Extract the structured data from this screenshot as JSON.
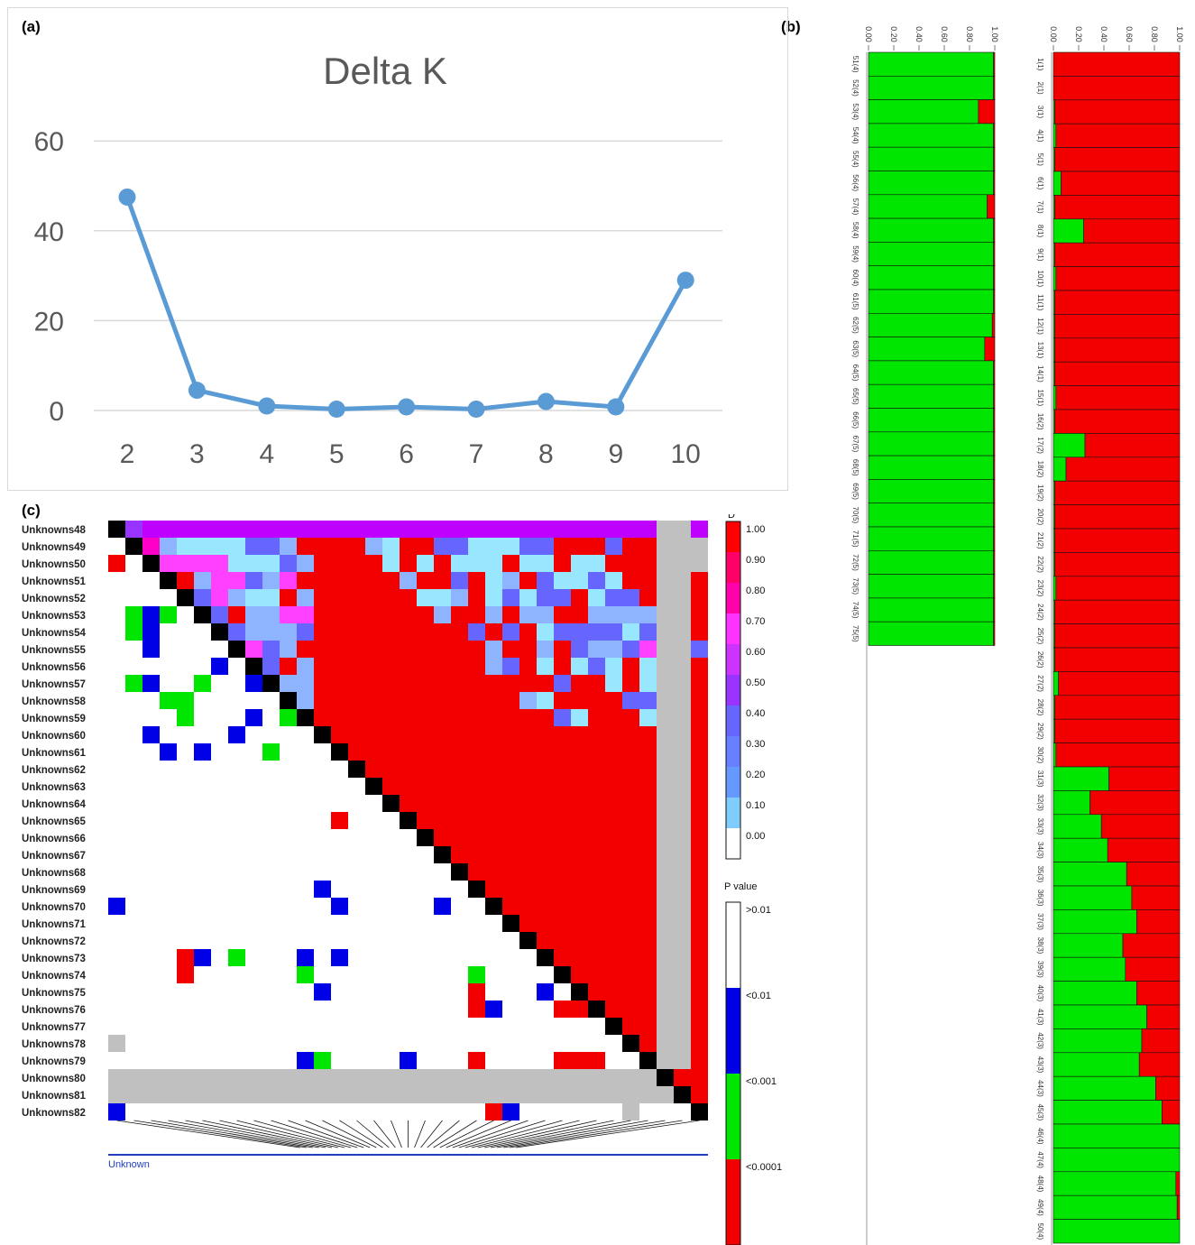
{
  "labels": {
    "a": "(a)",
    "b": "(b)",
    "c": "(c)"
  },
  "colors": {
    "line": "#5b9bd5",
    "green": "#00e600",
    "red": "#f20000",
    "black": "#000000",
    "gray": "#c0c0c0",
    "blue": "#0000e6"
  },
  "chart_data": [
    {
      "type": "line",
      "title": "Delta K",
      "x": [
        2,
        3,
        4,
        5,
        6,
        7,
        8,
        9,
        10
      ],
      "y": [
        47.5,
        4.5,
        1,
        0.3,
        0.8,
        0.3,
        2,
        0.8,
        29
      ],
      "ylim": [
        0,
        60
      ],
      "yticks": [
        0,
        20,
        40,
        60
      ],
      "grid": true
    },
    {
      "type": "bar",
      "orientation": "horizontal",
      "stacked": true,
      "xticks": [
        "0.00",
        "0.20",
        "0.40",
        "0.60",
        "0.80",
        "1.00"
      ],
      "left_column": {
        "categories": [
          "51(4)",
          "52(4)",
          "53(4)",
          "54(4)",
          "55(4)",
          "56(4)",
          "57(4)",
          "58(4)",
          "59(4)",
          "60(4)",
          "61(5)",
          "62(5)",
          "63(5)",
          "64(5)",
          "65(5)",
          "66(5)",
          "67(5)",
          "68(5)",
          "69(5)",
          "70(5)",
          "71(5)",
          "72(5)",
          "73(5)",
          "74(5)",
          "75(5)"
        ],
        "green": [
          0.99,
          0.99,
          0.87,
          0.99,
          0.99,
          0.99,
          0.94,
          0.99,
          0.99,
          0.99,
          0.99,
          0.98,
          0.92,
          0.99,
          0.99,
          0.99,
          0.99,
          0.99,
          0.99,
          0.99,
          0.99,
          0.99,
          0.99,
          0.99,
          0.99
        ]
      },
      "right_column": {
        "categories": [
          "1(1)",
          "2(1)",
          "3(1)",
          "4(1)",
          "5(1)",
          "6(1)",
          "7(1)",
          "8(1)",
          "9(1)",
          "10(1)",
          "11(1)",
          "12(1)",
          "13(1)",
          "14(1)",
          "15(1)",
          "16(2)",
          "17(2)",
          "18(2)",
          "19(2)",
          "20(2)",
          "21(2)",
          "22(2)",
          "23(2)",
          "24(2)",
          "25(2)",
          "26(2)",
          "27(2)",
          "28(2)",
          "29(2)",
          "30(2)",
          "31(3)",
          "32(3)",
          "33(3)",
          "34(3)",
          "35(3)",
          "36(3)",
          "37(3)",
          "38(3)",
          "39(3)",
          "40(3)",
          "41(3)",
          "42(3)",
          "43(3)",
          "44(3)",
          "45(3)",
          "46(4)",
          "47(4)",
          "48(4)",
          "49(4)",
          "50(4)"
        ],
        "green": [
          0,
          0,
          0.01,
          0.02,
          0.01,
          0.06,
          0.01,
          0.24,
          0.01,
          0.02,
          0.01,
          0.01,
          0.01,
          0.01,
          0.02,
          0.01,
          0.25,
          0.1,
          0.01,
          0.01,
          0.01,
          0.01,
          0.02,
          0.01,
          0.01,
          0.01,
          0.04,
          0.01,
          0.01,
          0.02,
          0.44,
          0.29,
          0.38,
          0.43,
          0.58,
          0.62,
          0.66,
          0.55,
          0.57,
          0.66,
          0.74,
          0.7,
          0.68,
          0.81,
          0.86,
          1,
          1,
          0.97,
          0.98,
          1
        ]
      }
    },
    {
      "type": "heatmap",
      "rows": [
        "Unknowns48",
        "Unknowns49",
        "Unknowns50",
        "Unknowns51",
        "Unknowns52",
        "Unknowns53",
        "Unknowns54",
        "Unknowns55",
        "Unknowns56",
        "Unknowns57",
        "Unknowns58",
        "Unknowns59",
        "Unknowns60",
        "Unknowns61",
        "Unknowns62",
        "Unknowns63",
        "Unknowns64",
        "Unknowns65",
        "Unknowns66",
        "Unknowns67",
        "Unknowns68",
        "Unknowns69",
        "Unknowns70",
        "Unknowns71",
        "Unknowns72",
        "Unknowns73",
        "Unknowns74",
        "Unknowns75",
        "Unknowns76",
        "Unknowns77",
        "Unknowns78",
        "Unknowns79",
        "Unknowns80",
        "Unknowns81",
        "Unknowns82"
      ],
      "legend_dprime_title": "D'",
      "legend_dprime_ticks": [
        "1.00",
        "0.90",
        "0.80",
        "0.70",
        "0.60",
        "0.50",
        "0.40",
        "0.30",
        "0.20",
        "0.10",
        "0.00"
      ],
      "legend_p_title": "P value",
      "legend_p_ticks": [
        ">0.01",
        "<0.01",
        "<0.001",
        "<0.0001"
      ],
      "axis_label": "Unknown",
      "upper_triangle_dprime": [
        "MPPPPPPPPPPPPPPPPPPPPPPPPPPPPPPPPP",
        "qaccccbbaRRRRacRRbbcccbbRRRbRRRggb",
        "oooocccbaRRRRcRcRcccRccRccRRRRRgga",
        "RaoobaoRRRRRRaRRbRcaRbccbcRRRRRggb",
        "boaccRaRRRRRRccaRcbcbbRcbbRRRRRgga",
        "bRaaooRRRRRRRaRRaRaaRRaaaaaRRRRggb",
        "baaabRRRRRRRRRbRbRcbbbbcbbbRRRRggc",
        "obaRRRRRRRRRRRaRRaRbaaboaRbRRRRgga",
        "bRaRRRRRRRRRRabRcRcbcRcbbRRRRRRggb",
        "aaRRRRRRRRRRRRRRbRRcRcbbRRRRRRRggc",
        "aRRRRRRRRRRRRacRRRRbbbRRbRRRRRRgga",
        "RRRRRRRRRRRRRRbcRRRcRRRRcRRRRRRggc",
        "RRRRRRRRRRRRRRRRRRRRRRRRRRRRRRRggb",
        "RRRRRRRRRRRRRRRRRRRRRRRRRRRRRRRggc",
        "RRRRRRRRRRRRRRRRRRRRRRRRRRRRRRRggb",
        "RRRRRRRRRRRRRRRRRRRRRRRRRRRRRRRggc",
        "RRRRRRRRRRRRRRRRRRRRRRRRRRRRRRRggb",
        "RRRRRRRRRRRRRRRRRRRRRRRRRRRRRRRggc",
        "RRRRRRRRRRRRRRRRRRRRRRRRRRRRRRRggb",
        "RRRRRRRRRRRRRRRRRRRRRRRRRRRRRRRggc",
        "RRRRRRRRRRRRRRRRRRRRRRRRRRRRRRRggb",
        "RRRRRRRRRRRRRRRRRRRRRRRRRRRRRRRggc",
        "RRRRRRRRRRRRRRRRRRRRRRRRRRRRRRRggb",
        "RRRRRRRRRRRRRRRRRRRRRRRRRRRRRRRggc",
        "RRRRRRRRRRRRRRRRRRRRRRRRRRRRRRRggb",
        "RRRRRRRRRRRRRRRRRRRRRRRRRRRRRRRggc",
        "RRRRRRRRRRRRRRRRRRRRRRRRRRRRRRRggb",
        "RRRRRRRRRRRRRRRRRRRRRRRRRRRRRRRggc",
        "RRRRRRRRRRRRRRRRRRRRRRRRRRRRRRRggb",
        "RRRRRRRRRRRRRRRRRRRRRRRRRRRRRRRggc",
        "RRRRRRRRRRRRRRRRRRRRRRRRRRRRRRRggb",
        "RRRRRRRRRRRRRRRRRRRRRRRRRRRRRRRggc",
        "RRRRRRRRRRRRRRRRRRRRRRRRRRRRRRRggb",
        "RRRRRRRRRRRRRRRRRRRRRRRRRRRRRRRggc"
      ],
      "lower_triangle_pvalue": [
        {
          "row": 2,
          "col": 0,
          "v": "R"
        },
        {
          "row": 5,
          "col": 1,
          "v": "G"
        },
        {
          "row": 5,
          "col": 2,
          "v": "B"
        },
        {
          "row": 5,
          "col": 3,
          "v": "G"
        },
        {
          "row": 6,
          "col": 1,
          "v": "G"
        },
        {
          "row": 6,
          "col": 2,
          "v": "B"
        },
        {
          "row": 7,
          "col": 2,
          "v": "B"
        },
        {
          "row": 8,
          "col": 6,
          "v": "B"
        },
        {
          "row": 9,
          "col": 1,
          "v": "G"
        },
        {
          "row": 9,
          "col": 2,
          "v": "B"
        },
        {
          "row": 9,
          "col": 5,
          "v": "G"
        },
        {
          "row": 9,
          "col": 8,
          "v": "B"
        },
        {
          "row": 10,
          "col": 3,
          "v": "G"
        },
        {
          "row": 10,
          "col": 4,
          "v": "G"
        },
        {
          "row": 11,
          "col": 4,
          "v": "G"
        },
        {
          "row": 11,
          "col": 8,
          "v": "B"
        },
        {
          "row": 11,
          "col": 10,
          "v": "G"
        },
        {
          "row": 12,
          "col": 2,
          "v": "B"
        },
        {
          "row": 12,
          "col": 7,
          "v": "B"
        },
        {
          "row": 13,
          "col": 3,
          "v": "B"
        },
        {
          "row": 13,
          "col": 5,
          "v": "B"
        },
        {
          "row": 13,
          "col": 9,
          "v": "G"
        },
        {
          "row": 17,
          "col": 13,
          "v": "R"
        },
        {
          "row": 21,
          "col": 12,
          "v": "B"
        },
        {
          "row": 22,
          "col": 0,
          "v": "B"
        },
        {
          "row": 22,
          "col": 13,
          "v": "B"
        },
        {
          "row": 22,
          "col": 19,
          "v": "B"
        },
        {
          "row": 25,
          "col": 4,
          "v": "R"
        },
        {
          "row": 25,
          "col": 5,
          "v": "B"
        },
        {
          "row": 25,
          "col": 7,
          "v": "G"
        },
        {
          "row": 25,
          "col": 11,
          "v": "B"
        },
        {
          "row": 25,
          "col": 13,
          "v": "B"
        },
        {
          "row": 26,
          "col": 4,
          "v": "R"
        },
        {
          "row": 26,
          "col": 11,
          "v": "G"
        },
        {
          "row": 26,
          "col": 21,
          "v": "G"
        },
        {
          "row": 27,
          "col": 12,
          "v": "B"
        },
        {
          "row": 27,
          "col": 21,
          "v": "R"
        },
        {
          "row": 27,
          "col": 25,
          "v": "B"
        },
        {
          "row": 28,
          "col": 21,
          "v": "R"
        },
        {
          "row": 28,
          "col": 22,
          "v": "B"
        },
        {
          "row": 28,
          "col": 26,
          "v": "R"
        },
        {
          "row": 28,
          "col": 27,
          "v": "R"
        },
        {
          "row": 30,
          "col": 0,
          "v": "X"
        },
        {
          "row": 31,
          "col": 11,
          "v": "B"
        },
        {
          "row": 31,
          "col": 12,
          "v": "G"
        },
        {
          "row": 31,
          "col": 17,
          "v": "B"
        },
        {
          "row": 31,
          "col": 21,
          "v": "R"
        },
        {
          "row": 31,
          "col": 26,
          "v": "R"
        },
        {
          "row": 31,
          "col": 27,
          "v": "R"
        },
        {
          "row": 31,
          "col": 28,
          "v": "R"
        },
        {
          "row": 34,
          "col": 0,
          "v": "B"
        },
        {
          "row": 34,
          "col": 22,
          "v": "R"
        },
        {
          "row": 34,
          "col": 23,
          "v": "B"
        },
        {
          "row": 34,
          "col": 30,
          "v": "X"
        }
      ]
    }
  ]
}
